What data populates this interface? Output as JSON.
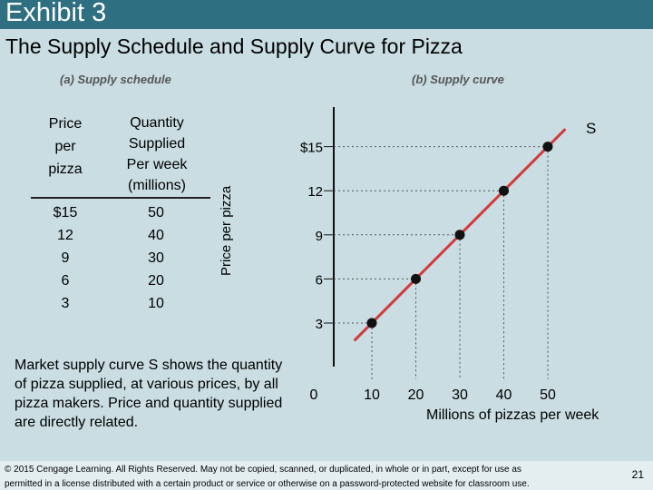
{
  "slide": {
    "header_title": "Exhibit 3",
    "subtitle": "The Supply Schedule and Supply Curve for Pizza",
    "panel_a_label": "(a) Supply schedule",
    "panel_b_label": "(b) Supply curve",
    "description": "Market supply curve S shows the quantity of pizza supplied, at various prices, by all pizza makers. Price and quantity supplied are directly related.",
    "footer_line1": "© 2015 Cengage Learning. All Rights Reserved. May not be copied, scanned, or duplicated, in whole or in part, except for use as",
    "footer_line2": "permitted in a license distributed with a certain product or service or otherwise on a password-protected website for classroom use.",
    "page_number": "21"
  },
  "schedule": {
    "price_header": [
      "Price",
      "per",
      "pizza"
    ],
    "quantity_header": [
      "Quantity",
      "Supplied",
      "Per week",
      "(millions)"
    ],
    "prices": [
      "$15",
      "12",
      "9",
      "6",
      "3"
    ],
    "quantities": [
      "50",
      "40",
      "30",
      "20",
      "10"
    ]
  },
  "chart_data": {
    "type": "line",
    "ylabel": "Price per pizza",
    "xlabel": "Millions of pizzas per week",
    "series": [
      {
        "name": "S",
        "x": [
          10,
          20,
          30,
          40,
          50
        ],
        "y": [
          3,
          6,
          9,
          12,
          15
        ]
      }
    ],
    "x_ticks": [
      "0",
      "10",
      "20",
      "30",
      "40",
      "50"
    ],
    "y_ticks": [
      "3",
      "6",
      "9",
      "12",
      "$15"
    ],
    "curve_label": "S",
    "colors": {
      "curve": "#d23a3a",
      "points": "#111111",
      "guides": "#555555"
    }
  }
}
